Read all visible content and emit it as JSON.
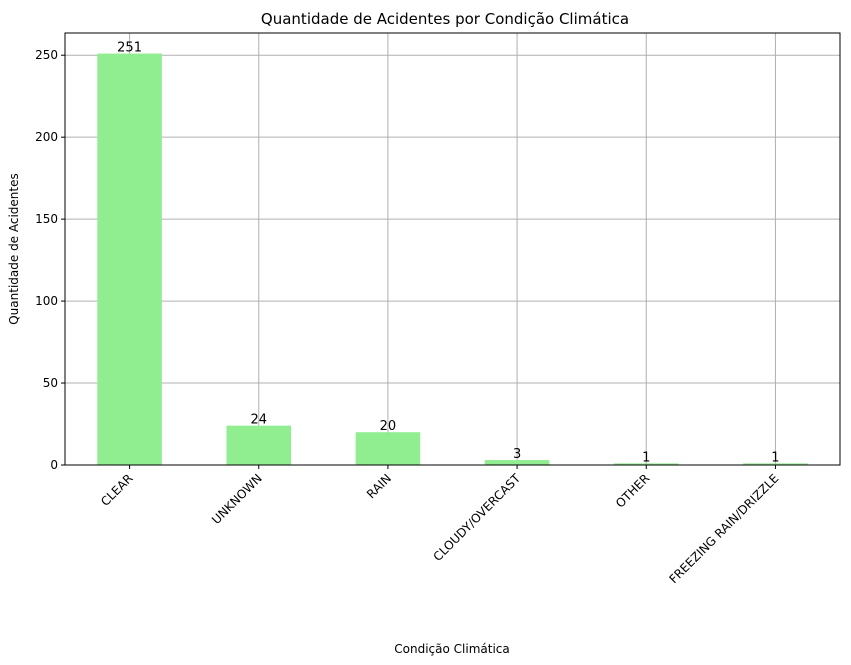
{
  "chart_data": {
    "type": "bar",
    "title": "Quantidade de Acidentes por Condição Climática",
    "xlabel": "Condição Climática",
    "ylabel": "Quantidade de Acidentes",
    "categories": [
      "CLEAR",
      "UNKNOWN",
      "RAIN",
      "CLOUDY/OVERCAST",
      "OTHER",
      "FREEZING RAIN/DRIZZLE"
    ],
    "values": [
      251,
      24,
      20,
      3,
      1,
      1
    ],
    "data_labels": [
      "251",
      "24",
      "20",
      "3",
      "1",
      "1"
    ],
    "ylim": [
      0,
      263.55
    ],
    "yticks": [
      0,
      50,
      100,
      150,
      200,
      250
    ],
    "ytick_labels": [
      "0",
      "50",
      "100",
      "150",
      "200",
      "250"
    ],
    "grid": true,
    "bar_color": "#90EE90",
    "grid_color": "#b0b0b0",
    "legend": null
  }
}
